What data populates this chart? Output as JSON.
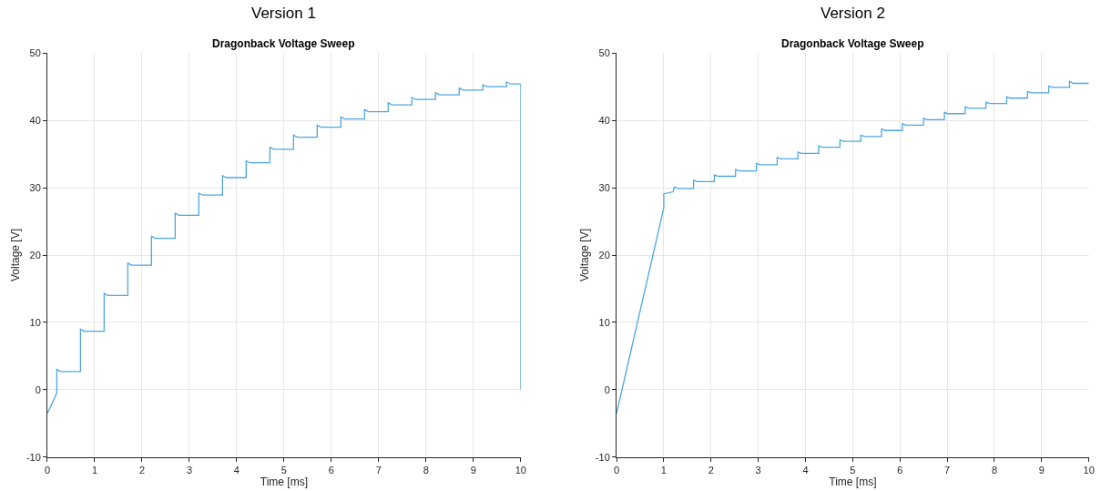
{
  "chart_data": [
    {
      "type": "line",
      "title": "Version 1",
      "subtitle": "Dragonback Voltage Sweep",
      "xlabel": "Time [ms]",
      "ylabel": "Voltage [V]",
      "xlim": [
        0,
        10
      ],
      "ylim": [
        -10,
        50
      ],
      "xticks": [
        0,
        1,
        2,
        3,
        4,
        5,
        6,
        7,
        8,
        9,
        10
      ],
      "yticks": [
        -10,
        0,
        10,
        20,
        30,
        40,
        50
      ],
      "grid": true,
      "marker": "none",
      "line_style": "solid",
      "series": [
        {
          "color": "#4da6e0",
          "x": [
            0,
            0.2,
            0.2,
            0.28,
            0.7,
            0.7,
            0.78,
            1.2,
            1.2,
            1.28,
            1.7,
            1.7,
            1.78,
            2.2,
            2.2,
            2.28,
            2.7,
            2.7,
            2.78,
            3.2,
            3.2,
            3.28,
            3.7,
            3.7,
            3.78,
            4.2,
            4.2,
            4.28,
            4.7,
            4.7,
            4.78,
            5.2,
            5.2,
            5.28,
            5.7,
            5.7,
            5.78,
            6.2,
            6.2,
            6.28,
            6.7,
            6.7,
            6.78,
            7.2,
            7.2,
            7.28,
            7.7,
            7.7,
            7.78,
            8.2,
            8.2,
            8.28,
            8.7,
            8.7,
            8.78,
            9.2,
            9.2,
            9.28,
            9.7,
            9.7,
            9.78,
            10,
            10
          ],
          "values": [
            -3.5,
            -0.5,
            3.0,
            2.7,
            2.7,
            9.0,
            8.7,
            8.7,
            14.3,
            14.0,
            14.0,
            18.8,
            18.5,
            18.5,
            22.8,
            22.5,
            22.5,
            26.2,
            25.9,
            25.9,
            29.2,
            28.9,
            28.9,
            31.8,
            31.5,
            31.5,
            34.0,
            33.7,
            33.7,
            36.0,
            35.7,
            35.7,
            37.8,
            37.5,
            37.5,
            39.3,
            39.0,
            39.0,
            40.5,
            40.2,
            40.2,
            41.6,
            41.3,
            41.3,
            42.6,
            42.3,
            42.3,
            43.4,
            43.1,
            43.1,
            44.1,
            43.8,
            43.8,
            44.8,
            44.5,
            44.5,
            45.3,
            45.0,
            45.0,
            45.7,
            45.4,
            45.4,
            0
          ]
        }
      ]
    },
    {
      "type": "line",
      "title": "Version 2",
      "subtitle": "Dragonback Voltage Sweep",
      "xlabel": "Time [ms]",
      "ylabel": "Voltage [V]",
      "xlim": [
        0,
        10
      ],
      "ylim": [
        -10,
        50
      ],
      "xticks": [
        0,
        1,
        2,
        3,
        4,
        5,
        6,
        7,
        8,
        9,
        10
      ],
      "yticks": [
        -10,
        0,
        10,
        20,
        30,
        40,
        50
      ],
      "grid": true,
      "marker": "none",
      "line_style": "solid",
      "series": [
        {
          "color": "#4da6e0",
          "x": [
            0,
            1,
            1,
            1.2,
            1.22,
            1.3,
            1.63,
            1.63,
            1.71,
            2.07,
            2.07,
            2.15,
            2.52,
            2.52,
            2.6,
            2.96,
            2.96,
            3.04,
            3.4,
            3.4,
            3.48,
            3.84,
            3.84,
            3.92,
            4.28,
            4.28,
            4.36,
            4.73,
            4.73,
            4.81,
            5.17,
            5.17,
            5.25,
            5.61,
            5.61,
            5.69,
            6.05,
            6.05,
            6.13,
            6.5,
            6.5,
            6.58,
            6.94,
            6.94,
            7.02,
            7.38,
            7.38,
            7.46,
            7.82,
            7.82,
            7.9,
            8.26,
            8.26,
            8.34,
            8.7,
            8.7,
            8.78,
            9.15,
            9.15,
            9.23,
            9.59,
            9.59,
            9.67,
            10
          ],
          "values": [
            -3.5,
            27.0,
            29.1,
            29.4,
            30.1,
            29.9,
            29.9,
            31.1,
            30.9,
            30.9,
            31.9,
            31.7,
            31.7,
            32.7,
            32.5,
            32.5,
            33.6,
            33.4,
            33.4,
            34.5,
            34.3,
            34.3,
            35.3,
            35.1,
            35.1,
            36.2,
            36.0,
            36.0,
            37.1,
            36.9,
            36.9,
            37.8,
            37.6,
            37.6,
            38.7,
            38.5,
            38.5,
            39.5,
            39.3,
            39.3,
            40.3,
            40.1,
            40.1,
            41.2,
            41.0,
            41.0,
            42.0,
            41.8,
            41.8,
            42.7,
            42.5,
            42.5,
            43.5,
            43.3,
            43.3,
            44.3,
            44.1,
            44.1,
            45.1,
            44.9,
            44.9,
            45.8,
            45.5,
            45.5
          ]
        }
      ]
    }
  ]
}
